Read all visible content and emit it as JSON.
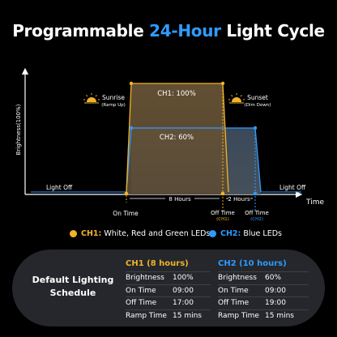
{
  "title": {
    "prefix": "Programmable ",
    "accent": "24-Hour",
    "suffix": " Light Cycle"
  },
  "colors": {
    "ch1": "#f0b429",
    "ch2": "#2f9bff",
    "background": "#000000",
    "panel": "#25272c"
  },
  "chart": {
    "y_label": "Brightness(100%)",
    "x_label": "Time",
    "light_off_left": "Light Off",
    "light_off_right": "Light Off",
    "ch1_label": "CH1: 100%",
    "ch2_label": "CH2: 60%",
    "sunrise_label": "Sunrise",
    "sunrise_sub": "(Ramp Up)",
    "sunset_label": "Sunset",
    "sunset_sub": "(Dim Down)",
    "on_time_label": "On Time",
    "off_time_ch1_label": "Off Time",
    "off_time_ch1_sub": "(CH1)",
    "off_time_ch2_label": "Off Time",
    "off_time_ch2_sub": "(CH2)",
    "span_8h_label": "8 Hours",
    "span_2h_label": "2 Hours"
  },
  "chart_data": {
    "type": "area",
    "series": [
      {
        "name": "CH1",
        "brightness_percent": 100,
        "on_time": "09:00",
        "off_time": "17:00",
        "duration_hours": 8
      },
      {
        "name": "CH2",
        "brightness_percent": 60,
        "on_time": "09:00",
        "off_time": "19:00",
        "duration_hours": 10
      }
    ],
    "ylabel": "Brightness(100%)",
    "xlabel": "Time"
  },
  "legend": {
    "ch1_tag": "CH1:",
    "ch1_text": " White, Red and Green LEDs",
    "ch2_tag": "CH2:",
    "ch2_text": " Blue LEDs"
  },
  "schedule": {
    "title_line1": "Default Lighting",
    "title_line2": "Schedule",
    "ch1": {
      "header": "CH1 (8 hours)",
      "rows": [
        {
          "key": "Brightness",
          "value": "100%"
        },
        {
          "key": "On Time",
          "value": "09:00"
        },
        {
          "key": "Off Time",
          "value": "17:00"
        },
        {
          "key": "Ramp Time",
          "value": "15 mins"
        }
      ]
    },
    "ch2": {
      "header": "CH2 (10 hours)",
      "rows": [
        {
          "key": "Brightness",
          "value": "60%"
        },
        {
          "key": "On Time",
          "value": "09:00"
        },
        {
          "key": "Off Time",
          "value": "19:00"
        },
        {
          "key": "Ramp Time",
          "value": "15 mins"
        }
      ]
    }
  }
}
